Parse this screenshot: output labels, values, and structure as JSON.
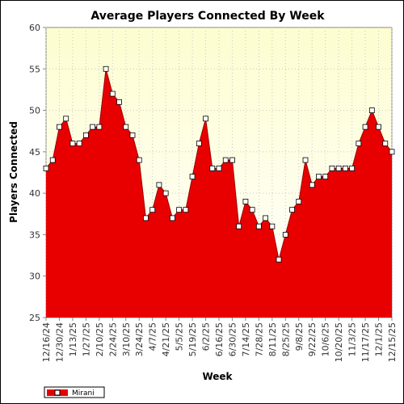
{
  "chart_data": {
    "type": "area",
    "title": "Average Players Connected By Week",
    "xlabel": "Week",
    "ylabel": "Players Connected",
    "ylim": [
      25,
      60
    ],
    "yticks": [
      25,
      30,
      35,
      40,
      45,
      50,
      55,
      60
    ],
    "grid": true,
    "legend_position": "bottom-left",
    "x_tick_labels": [
      "12/16/24",
      "12/30/24",
      "1/13/25",
      "1/27/25",
      "2/10/25",
      "2/24/25",
      "3/10/25",
      "3/24/25",
      "4/7/25",
      "4/21/25",
      "5/5/25",
      "5/19/25",
      "6/2/25",
      "6/16/25",
      "6/30/25",
      "7/14/25",
      "7/28/25",
      "8/11/25",
      "8/25/25",
      "9/8/25",
      "9/22/25",
      "10/6/25",
      "10/20/25",
      "11/3/25",
      "11/17/25",
      "12/1/25",
      "12/15/25"
    ],
    "series": [
      {
        "name": "Mirani",
        "color": "#e80000",
        "values": [
          43,
          44,
          48,
          49,
          46,
          46,
          47,
          48,
          48,
          55,
          52,
          51,
          48,
          47,
          44,
          37,
          38,
          41,
          40,
          37,
          38,
          38,
          42,
          46,
          49,
          43,
          43,
          44,
          44,
          36,
          39,
          38,
          36,
          37,
          36,
          32,
          35,
          38,
          39,
          44,
          41,
          42,
          42,
          43,
          43,
          43,
          43,
          46,
          48,
          50,
          48,
          46,
          45
        ]
      }
    ]
  },
  "colors": {
    "plot_gradient_top": "#fdfdd0",
    "plot_gradient_bottom": "#ffffff",
    "series_fill": "#e80000",
    "series_line": "#9a0000",
    "marker_fill": "#ffffff"
  }
}
